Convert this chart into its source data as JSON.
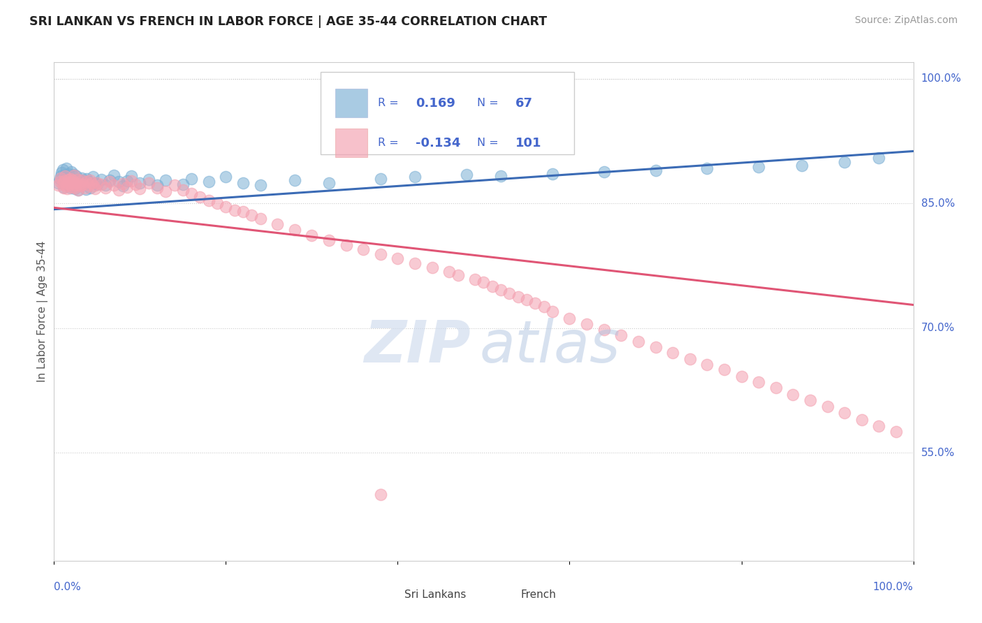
{
  "title": "SRI LANKAN VS FRENCH IN LABOR FORCE | AGE 35-44 CORRELATION CHART",
  "source": "Source: ZipAtlas.com",
  "ylabel": "In Labor Force | Age 35-44",
  "xlim": [
    0.0,
    1.0
  ],
  "ylim": [
    0.42,
    1.02
  ],
  "ytick_vals": [
    0.55,
    0.7,
    0.85,
    1.0
  ],
  "ytick_labels": [
    "55.0%",
    "70.0%",
    "85.0%",
    "100.0%"
  ],
  "blue_color": "#7BAFD4",
  "pink_color": "#F4A0B0",
  "blue_line_color": "#3B6BB5",
  "pink_line_color": "#E05575",
  "legend_text_color": "#4466CC",
  "title_color": "#222222",
  "source_color": "#999999",
  "background_color": "#FFFFFF",
  "grid_color": "#CCCCCC",
  "blue_scatter_x": [
    0.005,
    0.007,
    0.008,
    0.009,
    0.01,
    0.011,
    0.012,
    0.013,
    0.014,
    0.015,
    0.016,
    0.017,
    0.018,
    0.019,
    0.02,
    0.02,
    0.021,
    0.022,
    0.023,
    0.024,
    0.025,
    0.026,
    0.027,
    0.028,
    0.03,
    0.032,
    0.033,
    0.035,
    0.037,
    0.038,
    0.04,
    0.042,
    0.045,
    0.048,
    0.05,
    0.055,
    0.06,
    0.065,
    0.07,
    0.075,
    0.08,
    0.085,
    0.09,
    0.1,
    0.11,
    0.12,
    0.13,
    0.15,
    0.16,
    0.18,
    0.2,
    0.22,
    0.24,
    0.28,
    0.32,
    0.38,
    0.42,
    0.48,
    0.52,
    0.58,
    0.64,
    0.7,
    0.76,
    0.82,
    0.87,
    0.92,
    0.96
  ],
  "blue_scatter_y": [
    0.875,
    0.88,
    0.883,
    0.887,
    0.891,
    0.87,
    0.878,
    0.884,
    0.892,
    0.877,
    0.882,
    0.886,
    0.874,
    0.869,
    0.875,
    0.888,
    0.871,
    0.879,
    0.885,
    0.868,
    0.876,
    0.883,
    0.872,
    0.866,
    0.874,
    0.881,
    0.878,
    0.873,
    0.867,
    0.88,
    0.876,
    0.869,
    0.882,
    0.875,
    0.873,
    0.879,
    0.872,
    0.878,
    0.884,
    0.876,
    0.871,
    0.877,
    0.883,
    0.875,
    0.879,
    0.872,
    0.878,
    0.873,
    0.88,
    0.876,
    0.882,
    0.875,
    0.872,
    0.878,
    0.875,
    0.88,
    0.882,
    0.885,
    0.883,
    0.886,
    0.888,
    0.89,
    0.892,
    0.894,
    0.896,
    0.9,
    0.905
  ],
  "pink_scatter_x": [
    0.005,
    0.007,
    0.008,
    0.01,
    0.011,
    0.012,
    0.013,
    0.014,
    0.015,
    0.016,
    0.017,
    0.018,
    0.019,
    0.02,
    0.021,
    0.022,
    0.023,
    0.024,
    0.025,
    0.026,
    0.027,
    0.028,
    0.03,
    0.031,
    0.032,
    0.034,
    0.036,
    0.038,
    0.04,
    0.042,
    0.044,
    0.046,
    0.048,
    0.05,
    0.055,
    0.06,
    0.065,
    0.07,
    0.075,
    0.08,
    0.085,
    0.09,
    0.095,
    0.1,
    0.11,
    0.12,
    0.13,
    0.14,
    0.15,
    0.16,
    0.17,
    0.18,
    0.19,
    0.2,
    0.21,
    0.22,
    0.23,
    0.24,
    0.26,
    0.28,
    0.3,
    0.32,
    0.34,
    0.36,
    0.38,
    0.4,
    0.42,
    0.44,
    0.46,
    0.47,
    0.49,
    0.5,
    0.51,
    0.52,
    0.53,
    0.54,
    0.55,
    0.56,
    0.57,
    0.58,
    0.6,
    0.62,
    0.64,
    0.66,
    0.68,
    0.7,
    0.72,
    0.74,
    0.76,
    0.78,
    0.8,
    0.82,
    0.84,
    0.86,
    0.88,
    0.9,
    0.92,
    0.94,
    0.96,
    0.98,
    0.38
  ],
  "pink_scatter_y": [
    0.872,
    0.876,
    0.881,
    0.874,
    0.869,
    0.877,
    0.883,
    0.871,
    0.868,
    0.875,
    0.879,
    0.873,
    0.88,
    0.876,
    0.87,
    0.878,
    0.884,
    0.869,
    0.875,
    0.872,
    0.879,
    0.866,
    0.874,
    0.871,
    0.878,
    0.873,
    0.869,
    0.876,
    0.872,
    0.878,
    0.875,
    0.871,
    0.868,
    0.875,
    0.873,
    0.869,
    0.876,
    0.872,
    0.866,
    0.874,
    0.87,
    0.877,
    0.873,
    0.868,
    0.875,
    0.869,
    0.865,
    0.872,
    0.866,
    0.862,
    0.858,
    0.854,
    0.85,
    0.846,
    0.842,
    0.84,
    0.836,
    0.832,
    0.825,
    0.818,
    0.812,
    0.806,
    0.8,
    0.795,
    0.789,
    0.784,
    0.778,
    0.773,
    0.768,
    0.764,
    0.759,
    0.755,
    0.75,
    0.746,
    0.742,
    0.738,
    0.734,
    0.73,
    0.726,
    0.72,
    0.712,
    0.705,
    0.698,
    0.691,
    0.684,
    0.677,
    0.67,
    0.663,
    0.656,
    0.65,
    0.642,
    0.635,
    0.628,
    0.62,
    0.613,
    0.606,
    0.598,
    0.59,
    0.582,
    0.575,
    0.5
  ]
}
